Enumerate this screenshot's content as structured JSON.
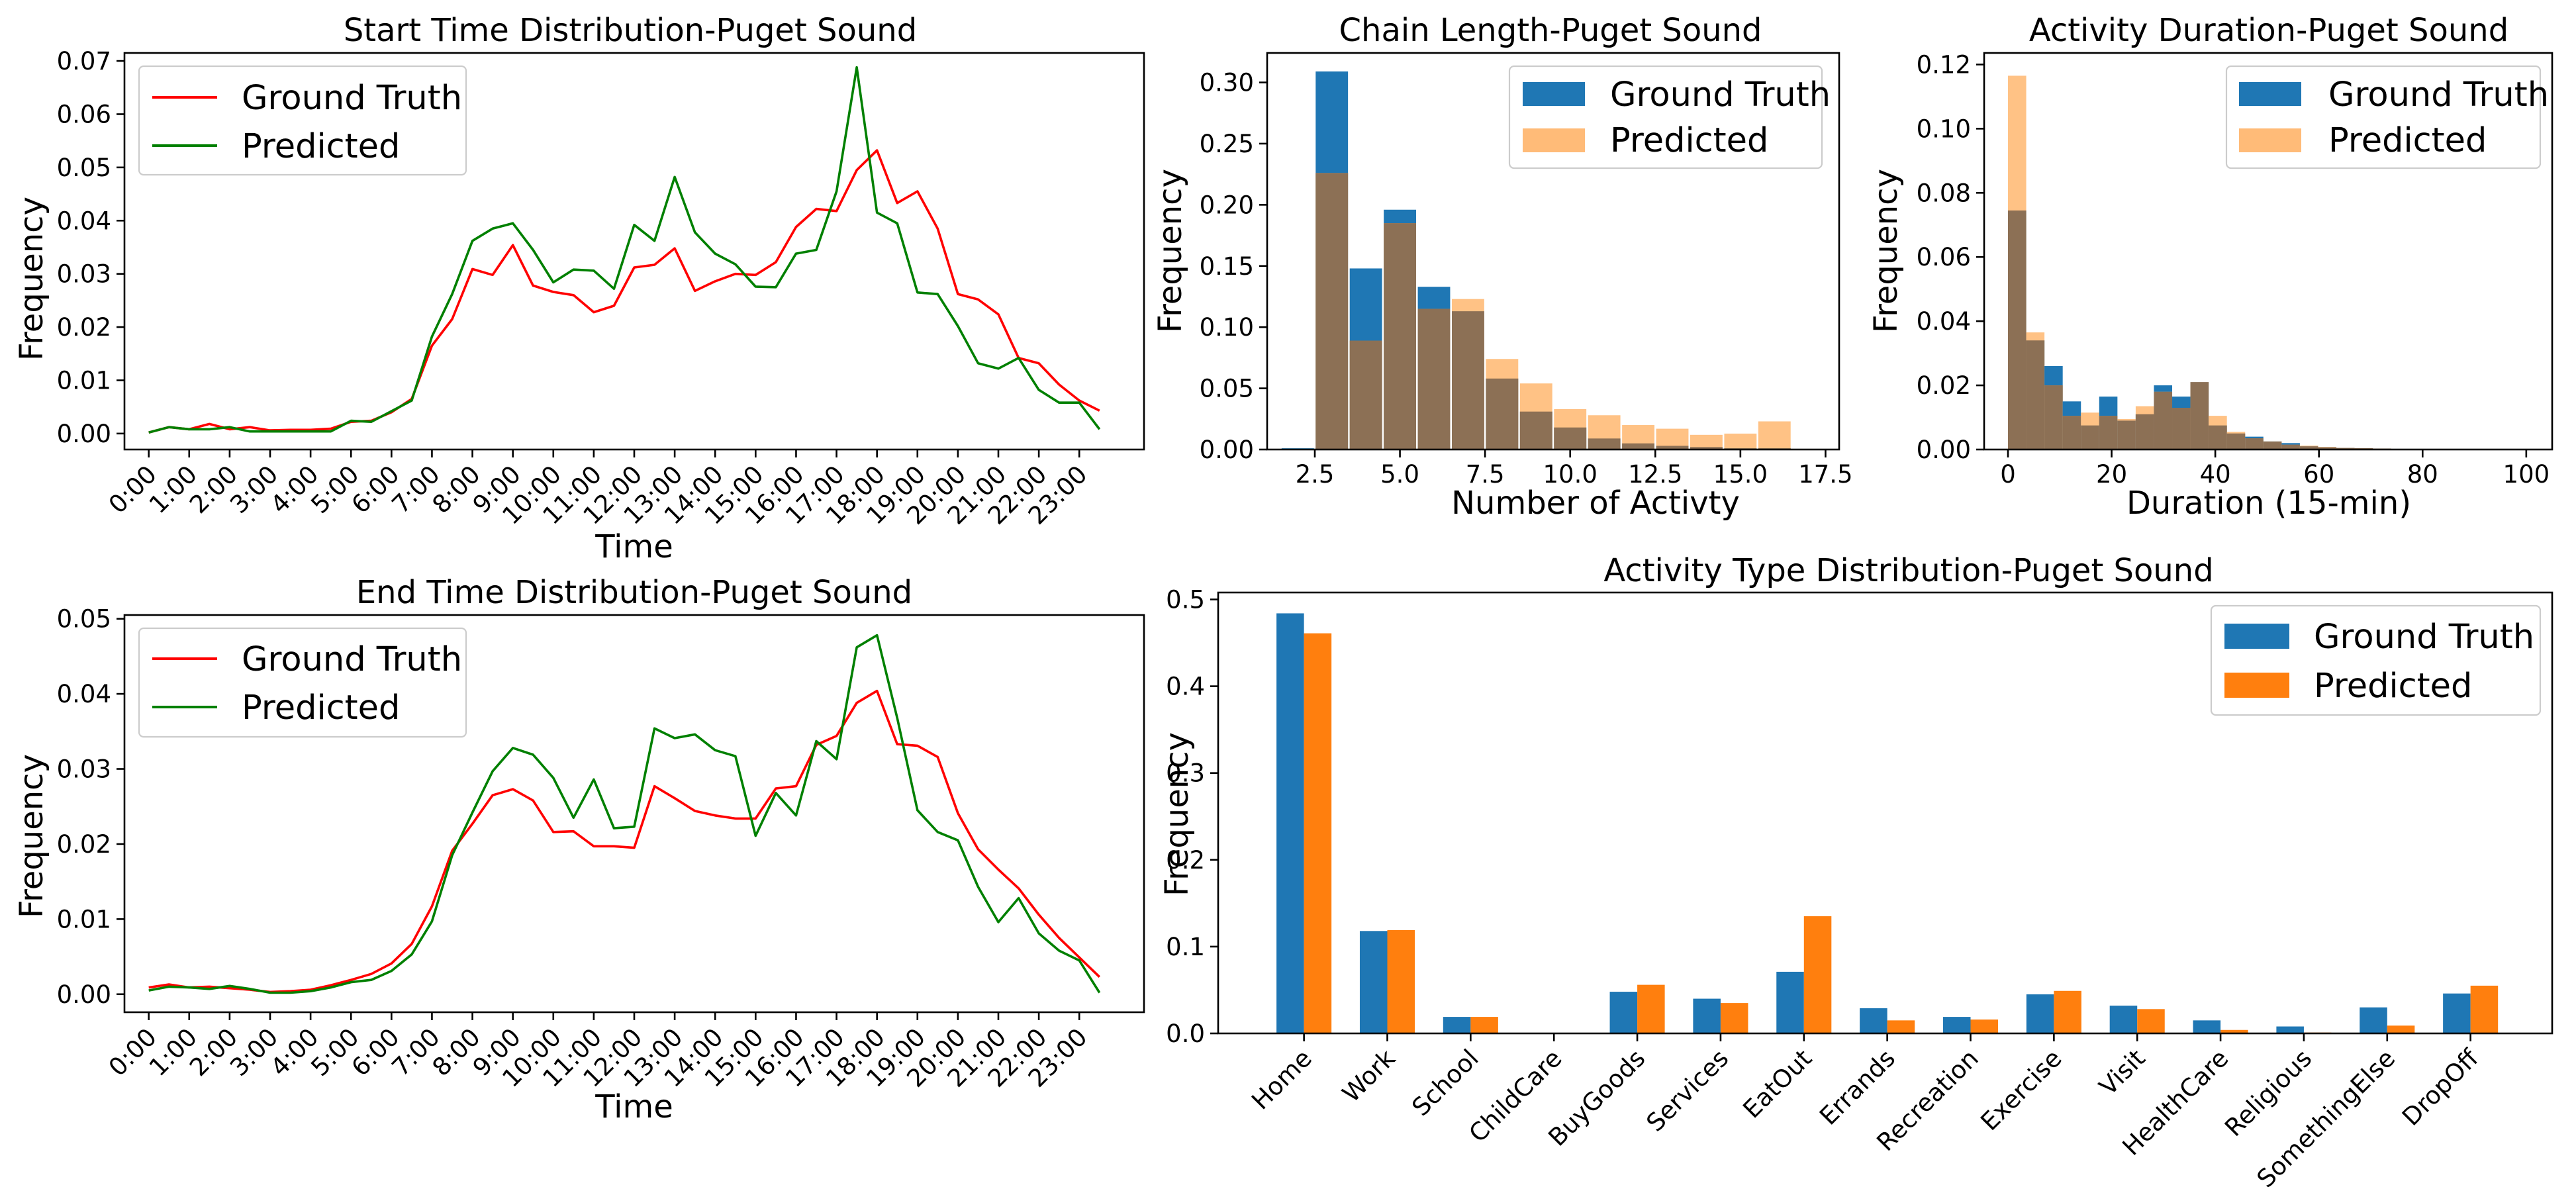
{
  "colors": {
    "gt_line": "#ff0000",
    "pred_line": "#008000",
    "gt_bar": "#1f77b4",
    "pred_bar": "#ff7f0e",
    "pred_hist": "#ffbb78",
    "overlap_hist": "#8c7055"
  },
  "chart_data": [
    {
      "id": "start",
      "type": "line",
      "title": "Start Time Distribution-Puget Sound",
      "xlabel": "Time",
      "ylabel": "Frequency",
      "x_range": [
        -0.6,
        24.6
      ],
      "ylim": [
        -0.003,
        0.0715
      ],
      "xticks": [
        0,
        1,
        2,
        3,
        4,
        5,
        6,
        7,
        8,
        9,
        10,
        11,
        12,
        13,
        14,
        15,
        16,
        17,
        18,
        19,
        20,
        21,
        22,
        23
      ],
      "xtick_labels": [
        "0:00",
        "1:00",
        "2:00",
        "3:00",
        "4:00",
        "5:00",
        "6:00",
        "7:00",
        "8:00",
        "9:00",
        "10:00",
        "11:00",
        "12:00",
        "13:00",
        "14:00",
        "15:00",
        "16:00",
        "17:00",
        "18:00",
        "19:00",
        "20:00",
        "21:00",
        "22:00",
        "23:00"
      ],
      "yticks": [
        0.0,
        0.01,
        0.02,
        0.03,
        0.04,
        0.05,
        0.06,
        0.07
      ],
      "ytick_labels": [
        "0.00",
        "0.01",
        "0.02",
        "0.03",
        "0.04",
        "0.05",
        "0.06",
        "0.07"
      ],
      "legend": [
        "Ground Truth",
        "Predicted"
      ],
      "series": [
        {
          "name": "Ground Truth",
          "x": [
            0,
            0.5,
            1,
            1.5,
            2,
            2.5,
            3,
            3.5,
            4,
            4.5,
            5,
            5.5,
            6,
            6.5,
            7,
            7.5,
            8,
            8.5,
            9,
            9.5,
            10,
            10.5,
            11,
            11.5,
            12,
            12.5,
            13,
            13.5,
            14,
            14.5,
            15,
            15.5,
            16,
            16.5,
            17,
            17.5,
            18,
            18.5,
            19,
            19.5,
            20,
            20.5,
            21,
            21.5,
            22,
            22.5,
            23,
            23.5
          ],
          "values": [
            0.0002,
            0.0012,
            0.0008,
            0.0018,
            0.0008,
            0.0012,
            0.0006,
            0.0007,
            0.0007,
            0.0009,
            0.0022,
            0.0024,
            0.004,
            0.0065,
            0.0165,
            0.0215,
            0.0309,
            0.0298,
            0.0354,
            0.0278,
            0.0266,
            0.026,
            0.0228,
            0.024,
            0.0312,
            0.0317,
            0.0348,
            0.0268,
            0.0286,
            0.03,
            0.0298,
            0.0322,
            0.0388,
            0.0422,
            0.0418,
            0.0495,
            0.0532,
            0.0433,
            0.0455,
            0.0385,
            0.0262,
            0.0252,
            0.0224,
            0.0142,
            0.0132,
            0.0092,
            0.0062,
            0.0043
          ]
        },
        {
          "name": "Predicted",
          "x": [
            0,
            0.5,
            1,
            1.5,
            2,
            2.5,
            3,
            3.5,
            4,
            4.5,
            5,
            5.5,
            6,
            6.5,
            7,
            7.5,
            8,
            8.5,
            9,
            9.5,
            10,
            10.5,
            11,
            11.5,
            12,
            12.5,
            13,
            13.5,
            14,
            14.5,
            15,
            15.5,
            16,
            16.5,
            17,
            17.5,
            18,
            18.5,
            19,
            19.5,
            20,
            20.5,
            21,
            21.5,
            22,
            22.5,
            23,
            23.5
          ],
          "values": [
            0.0002,
            0.0012,
            0.0008,
            0.0008,
            0.0012,
            0.0004,
            0.0004,
            0.0004,
            0.0004,
            0.0004,
            0.0024,
            0.0022,
            0.0042,
            0.0062,
            0.0182,
            0.0262,
            0.0362,
            0.0385,
            0.0395,
            0.0345,
            0.0284,
            0.0308,
            0.0306,
            0.0272,
            0.0392,
            0.0362,
            0.0482,
            0.0378,
            0.0338,
            0.0318,
            0.0276,
            0.0275,
            0.0338,
            0.0345,
            0.0455,
            0.0688,
            0.0415,
            0.0395,
            0.0265,
            0.0262,
            0.0202,
            0.0132,
            0.0122,
            0.0142,
            0.0082,
            0.0058,
            0.0058,
            0.0008
          ]
        }
      ]
    },
    {
      "id": "end",
      "type": "line",
      "title": "End Time Distribution-Puget Sound",
      "xlabel": "Time",
      "ylabel": "Frequency",
      "x_range": [
        -0.6,
        24.6
      ],
      "ylim": [
        -0.0024,
        0.0505
      ],
      "xticks": [
        0,
        1,
        2,
        3,
        4,
        5,
        6,
        7,
        8,
        9,
        10,
        11,
        12,
        13,
        14,
        15,
        16,
        17,
        18,
        19,
        20,
        21,
        22,
        23
      ],
      "xtick_labels": [
        "0:00",
        "1:00",
        "2:00",
        "3:00",
        "4:00",
        "5:00",
        "6:00",
        "7:00",
        "8:00",
        "9:00",
        "10:00",
        "11:00",
        "12:00",
        "13:00",
        "14:00",
        "15:00",
        "16:00",
        "17:00",
        "18:00",
        "19:00",
        "20:00",
        "21:00",
        "22:00",
        "23:00"
      ],
      "yticks": [
        0.0,
        0.01,
        0.02,
        0.03,
        0.04,
        0.05
      ],
      "ytick_labels": [
        "0.00",
        "0.01",
        "0.02",
        "0.03",
        "0.04",
        "0.05"
      ],
      "legend": [
        "Ground Truth",
        "Predicted"
      ],
      "series": [
        {
          "name": "Ground Truth",
          "x": [
            0,
            0.5,
            1,
            1.5,
            2,
            2.5,
            3,
            3.5,
            4,
            4.5,
            5,
            5.5,
            6,
            6.5,
            7,
            7.5,
            8,
            8.5,
            9,
            9.5,
            10,
            10.5,
            11,
            11.5,
            12,
            12.5,
            13,
            13.5,
            14,
            14.5,
            15,
            15.5,
            16,
            16.5,
            17,
            17.5,
            18,
            18.5,
            19,
            19.5,
            20,
            20.5,
            21,
            21.5,
            22,
            22.5,
            23,
            23.5
          ],
          "values": [
            0.0009,
            0.0013,
            0.0009,
            0.001,
            0.0008,
            0.0006,
            0.0003,
            0.0004,
            0.0006,
            0.0012,
            0.0019,
            0.0027,
            0.0041,
            0.0067,
            0.0117,
            0.0191,
            0.0227,
            0.0265,
            0.0273,
            0.0258,
            0.0216,
            0.0217,
            0.0197,
            0.0197,
            0.0195,
            0.0277,
            0.0261,
            0.0244,
            0.0238,
            0.0234,
            0.0234,
            0.0274,
            0.0277,
            0.0332,
            0.0344,
            0.0388,
            0.0404,
            0.0333,
            0.0331,
            0.0316,
            0.0241,
            0.0193,
            0.0166,
            0.0141,
            0.0106,
            0.0075,
            0.0049,
            0.0023
          ]
        },
        {
          "name": "Predicted",
          "x": [
            0,
            0.5,
            1,
            1.5,
            2,
            2.5,
            3,
            3.5,
            4,
            4.5,
            5,
            5.5,
            6,
            6.5,
            7,
            7.5,
            8,
            8.5,
            9,
            9.5,
            10,
            10.5,
            11,
            11.5,
            12,
            12.5,
            13,
            13.5,
            14,
            14.5,
            15,
            15.5,
            16,
            16.5,
            17,
            17.5,
            18,
            18.5,
            19,
            19.5,
            20,
            20.5,
            21,
            21.5,
            22,
            22.5,
            23,
            23.5
          ],
          "values": [
            0.0005,
            0.001,
            0.0009,
            0.0007,
            0.0011,
            0.0007,
            0.0002,
            0.0002,
            0.0004,
            0.0009,
            0.0016,
            0.0019,
            0.0031,
            0.0053,
            0.0097,
            0.0185,
            0.0242,
            0.0297,
            0.0328,
            0.0319,
            0.0288,
            0.0235,
            0.0286,
            0.0221,
            0.0223,
            0.0354,
            0.0341,
            0.0346,
            0.0325,
            0.0317,
            0.0211,
            0.0268,
            0.0238,
            0.0337,
            0.0313,
            0.0462,
            0.0478,
            0.0368,
            0.0245,
            0.0216,
            0.0205,
            0.0143,
            0.0096,
            0.0128,
            0.0081,
            0.0058,
            0.0045,
            0.0002
          ]
        }
      ]
    },
    {
      "id": "chain",
      "type": "bar",
      "title": "Chain Length-Puget Sound",
      "xlabel": "Number of Activty",
      "ylabel": "Frequency",
      "x_range": [
        1.1,
        17.9
      ],
      "ylim": [
        0,
        0.3241
      ],
      "bar_width": 0.95,
      "xticks": [
        2.5,
        5.0,
        7.5,
        10.0,
        12.5,
        15.0,
        17.5
      ],
      "xtick_labels": [
        "2.5",
        "5.0",
        "7.5",
        "10.0",
        "12.5",
        "15.0",
        "17.5"
      ],
      "yticks": [
        0.0,
        0.05,
        0.1,
        0.15,
        0.2,
        0.25,
        0.3
      ],
      "ytick_labels": [
        "0.00",
        "0.05",
        "0.10",
        "0.15",
        "0.20",
        "0.25",
        "0.30"
      ],
      "legend": [
        "Ground Truth",
        "Predicted"
      ],
      "bins": [
        2,
        3,
        4,
        5,
        6,
        7,
        8,
        9,
        10,
        11,
        12,
        13,
        14,
        15,
        16,
        17
      ],
      "series": [
        {
          "name": "Ground Truth",
          "values": [
            0.001,
            0.309,
            0.148,
            0.196,
            0.133,
            0.113,
            0.058,
            0.031,
            0.018,
            0.009,
            0.005,
            0.003,
            0.002,
            0.001,
            0.001,
            0.0005
          ]
        },
        {
          "name": "Predicted",
          "values": [
            0.0005,
            0.226,
            0.089,
            0.185,
            0.115,
            0.123,
            0.074,
            0.054,
            0.033,
            0.028,
            0.02,
            0.017,
            0.012,
            0.013,
            0.023,
            0.0005
          ]
        }
      ]
    },
    {
      "id": "duration",
      "type": "bar",
      "title": "Activity Duration-Puget Sound",
      "xlabel": "Duration (15-min)",
      "ylabel": "Frequency",
      "x_range": [
        -4.6,
        105
      ],
      "ylim": [
        0,
        0.1236
      ],
      "bar_width": 3.52,
      "xticks": [
        0,
        20,
        40,
        60,
        80,
        100
      ],
      "xtick_labels": [
        "0",
        "20",
        "40",
        "60",
        "80",
        "100"
      ],
      "yticks": [
        0.0,
        0.02,
        0.04,
        0.06,
        0.08,
        0.1,
        0.12
      ],
      "ytick_labels": [
        "0.00",
        "0.02",
        "0.04",
        "0.06",
        "0.08",
        "0.10",
        "0.12"
      ],
      "legend": [
        "Ground Truth",
        "Predicted"
      ],
      "bins": [
        1.76,
        5.28,
        8.8,
        12.32,
        15.84,
        19.36,
        22.88,
        26.4,
        29.92,
        33.44,
        36.96,
        40.48,
        44,
        47.52,
        51.04,
        54.56,
        58.08,
        61.6,
        65.12,
        68.64,
        72.16,
        75.68,
        79.2,
        82.72
      ],
      "series": [
        {
          "name": "Ground Truth",
          "values": [
            0.0745,
            0.034,
            0.026,
            0.015,
            0.0075,
            0.0165,
            0.009,
            0.011,
            0.02,
            0.0165,
            0.021,
            0.0075,
            0.005,
            0.004,
            0.0025,
            0.002,
            0.001,
            0.0007,
            0.0005,
            0.0004,
            0.0003,
            0.0002,
            0.0001,
            0.0001
          ]
        },
        {
          "name": "Predicted",
          "values": [
            0.1165,
            0.0365,
            0.02,
            0.0105,
            0.0115,
            0.0105,
            0.0095,
            0.0135,
            0.018,
            0.013,
            0.021,
            0.0105,
            0.0055,
            0.0035,
            0.0025,
            0.0015,
            0.0012,
            0.0008,
            0.0005,
            0.0004,
            0.0003,
            0.0002,
            0.0001,
            0.0001
          ]
        }
      ]
    },
    {
      "id": "activity",
      "type": "bar",
      "title": "Activity Type Distribution-Puget Sound",
      "xlabel": "",
      "ylabel": "Frequency",
      "x_range": [
        -1.03,
        14.98
      ],
      "ylim": [
        0,
        0.508
      ],
      "yticks": [
        0.0,
        0.1,
        0.2,
        0.3,
        0.4,
        0.5
      ],
      "ytick_labels": [
        "0.0",
        "0.1",
        "0.2",
        "0.3",
        "0.4",
        "0.5"
      ],
      "legend": [
        "Ground Truth",
        "Predicted"
      ],
      "categories": [
        "Home",
        "Work",
        "School",
        "ChildCare",
        "BuyGoods",
        "Services",
        "EatOut",
        "Errands",
        "Recreation",
        "Exercise",
        "Visit",
        "HealthCare",
        "Religious",
        "SomethingElse",
        "DropOff"
      ],
      "series": [
        {
          "name": "Ground Truth",
          "values": [
            0.484,
            0.118,
            0.019,
            0.0005,
            0.048,
            0.04,
            0.071,
            0.029,
            0.019,
            0.045,
            0.032,
            0.015,
            0.008,
            0.03,
            0.046
          ]
        },
        {
          "name": "Predicted",
          "values": [
            0.461,
            0.119,
            0.019,
            0.0002,
            0.056,
            0.035,
            0.135,
            0.015,
            0.016,
            0.049,
            0.028,
            0.004,
            0.001,
            0.009,
            0.055
          ]
        }
      ]
    }
  ]
}
